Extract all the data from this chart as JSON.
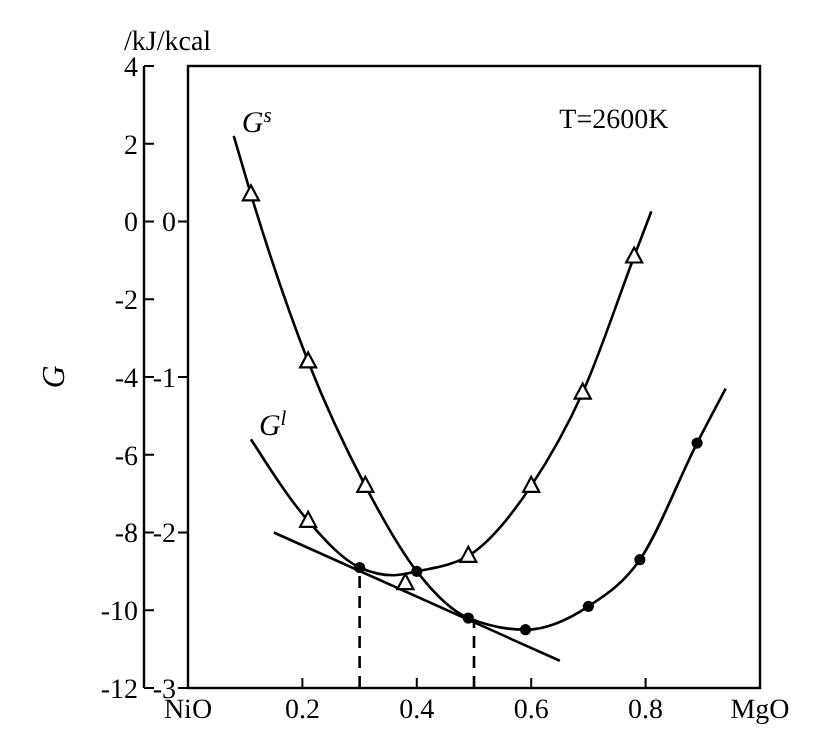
{
  "chart_data": {
    "type": "line",
    "ylabel": "G",
    "annotations": [
      "/kJ/kcal",
      "T=2600K"
    ],
    "xlim": [
      0,
      1
    ],
    "xticks": [
      {
        "value": 0,
        "label": "NiO"
      },
      0.2,
      0.4,
      0.6,
      0.8,
      {
        "value": 1,
        "label": "MgO"
      }
    ],
    "ylim": [
      -12,
      4
    ],
    "yticks": [
      -12,
      -10,
      -8,
      -6,
      -4,
      -2,
      0,
      2,
      4
    ],
    "y2lim": [
      -3,
      1
    ],
    "y2ticks": [
      -3,
      -2,
      -1,
      0
    ],
    "grid": false,
    "series": [
      {
        "name": "G$^{s}$",
        "color": "#000000",
        "marker": "none",
        "x": [
          0.08,
          0.11,
          0.21,
          0.31,
          0.4,
          0.49,
          0.59,
          0.7,
          0.79,
          0.89,
          0.94
        ],
        "values": [
          2.2,
          0.7,
          -3.6,
          -6.8,
          -9.0,
          -10.2,
          -10.5,
          -9.9,
          -8.7,
          -5.7,
          -4.3
        ]
      },
      {
        "name": "G$^{l}$",
        "color": "#000000",
        "marker": "none",
        "x": [
          0.11,
          0.21,
          0.3,
          0.36,
          0.4,
          0.49,
          0.6,
          0.69,
          0.78,
          0.81
        ],
        "values": [
          -5.6,
          -7.7,
          -8.9,
          -9.1,
          -9.0,
          -8.6,
          -6.8,
          -4.4,
          -0.9,
          0.26
        ]
      },
      {
        "type": "line",
        "color": "#000000",
        "marker": "none",
        "x": [
          0.15,
          0.65
        ],
        "values": [
          -8.0,
          -11.3
        ]
      },
      {
        "type": "line",
        "color": "#000000",
        "marker": "none",
        "line_style": "dashed",
        "x": [
          0.3,
          0.3
        ],
        "values": [
          -12,
          -8.9
        ]
      },
      {
        "type": "line",
        "color": "#000000",
        "marker": "none",
        "line_style": "dashed",
        "x": [
          0.5,
          0.5
        ],
        "values": [
          -12,
          -10.3
        ]
      },
      {
        "type": "scatter",
        "color": "#000000",
        "marker": "triangle",
        "x": [
          0.11,
          0.21,
          0.31,
          0.21,
          0.38,
          0.49,
          0.6,
          0.69,
          0.78
        ],
        "values": [
          0.7,
          -3.6,
          -6.8,
          -7.7,
          -9.3,
          -8.6,
          -6.8,
          -4.4,
          -0.9
        ]
      },
      {
        "type": "scatter",
        "color": "#000000",
        "marker": "circle",
        "x": [
          0.3,
          0.4,
          0.49,
          0.59,
          0.7,
          0.79,
          0.89
        ],
        "values": [
          -8.9,
          -9.0,
          -10.2,
          -10.5,
          -9.9,
          -8.7,
          -5.7
        ]
      }
    ]
  }
}
